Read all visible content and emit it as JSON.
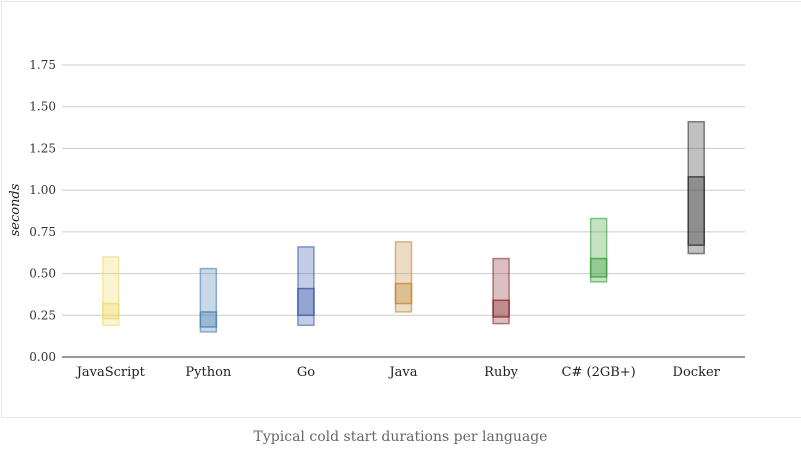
{
  "chart_data": {
    "type": "box",
    "title": "",
    "caption": "Typical cold start durations per language",
    "xlabel": "",
    "ylabel": "seconds",
    "ylim": [
      0,
      1.75
    ],
    "yticks": [
      "0.00",
      "0.25",
      "0.50",
      "0.75",
      "1.00",
      "1.25",
      "1.50",
      "1.75"
    ],
    "ytick_values": [
      0,
      0.25,
      0.5,
      0.75,
      1.0,
      1.25,
      1.5,
      1.75
    ],
    "grid": true,
    "categories": [
      "JavaScript",
      "Python",
      "Go",
      "Java",
      "Ruby",
      "C# (2GB+)",
      "Docker"
    ],
    "series": [
      {
        "name": "JavaScript",
        "min": 0.19,
        "q1": 0.23,
        "q3": 0.32,
        "max": 0.6,
        "color": "#f0dc6e"
      },
      {
        "name": "Python",
        "min": 0.15,
        "q1": 0.18,
        "q3": 0.27,
        "max": 0.53,
        "color": "#4a7fb0"
      },
      {
        "name": "Go",
        "min": 0.19,
        "q1": 0.25,
        "q3": 0.41,
        "max": 0.66,
        "color": "#3a5ba8"
      },
      {
        "name": "Java",
        "min": 0.27,
        "q1": 0.32,
        "q3": 0.44,
        "max": 0.69,
        "color": "#c08a3a"
      },
      {
        "name": "Ruby",
        "min": 0.2,
        "q1": 0.24,
        "q3": 0.34,
        "max": 0.59,
        "color": "#8a2a32"
      },
      {
        "name": "C# (2GB+)",
        "min": 0.45,
        "q1": 0.48,
        "q3": 0.59,
        "max": 0.83,
        "color": "#3aa03a"
      },
      {
        "name": "Docker",
        "min": 0.62,
        "q1": 0.67,
        "q3": 1.08,
        "max": 1.41,
        "color": "#333333"
      }
    ]
  }
}
